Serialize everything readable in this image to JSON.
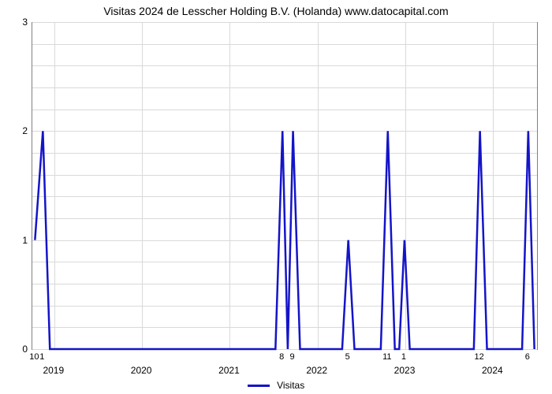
{
  "chart": {
    "type": "line",
    "title": "Visitas 2024 de Lesscher Holding B.V. (Holanda) www.datocapital.com",
    "title_fontsize": 14,
    "background_color": "#ffffff",
    "grid_color": "#d9d9d9",
    "axis_color": "#808080",
    "line_color": "#1414c8",
    "line_width": 2.5,
    "y_axis": {
      "min": 0,
      "max": 3,
      "ticks": [
        0,
        1,
        2,
        3
      ],
      "minor_gridlines_per_major": 4,
      "label_fontsize": 12
    },
    "x_axis": {
      "min": 2018.75,
      "max": 2024.5,
      "major_ticks": [
        2019,
        2020,
        2021,
        2022,
        2023,
        2024
      ],
      "minor_labels": [
        {
          "x": 2018.78,
          "label": "10"
        },
        {
          "x": 2018.87,
          "label": "1"
        },
        {
          "x": 2021.6,
          "label": "8"
        },
        {
          "x": 2021.72,
          "label": "9"
        },
        {
          "x": 2022.35,
          "label": "5"
        },
        {
          "x": 2022.8,
          "label": "11"
        },
        {
          "x": 2022.99,
          "label": "1"
        },
        {
          "x": 2023.85,
          "label": "12"
        },
        {
          "x": 2024.4,
          "label": "6"
        }
      ],
      "label_fontsize": 12
    },
    "series": {
      "name": "Visitas",
      "points": [
        {
          "x": 2018.78,
          "y": 1
        },
        {
          "x": 2018.87,
          "y": 2
        },
        {
          "x": 2018.95,
          "y": 0
        },
        {
          "x": 2021.52,
          "y": 0
        },
        {
          "x": 2021.6,
          "y": 2
        },
        {
          "x": 2021.66,
          "y": 0
        },
        {
          "x": 2021.72,
          "y": 2
        },
        {
          "x": 2021.8,
          "y": 0
        },
        {
          "x": 2022.28,
          "y": 0
        },
        {
          "x": 2022.35,
          "y": 1
        },
        {
          "x": 2022.42,
          "y": 0
        },
        {
          "x": 2022.72,
          "y": 0
        },
        {
          "x": 2022.8,
          "y": 2
        },
        {
          "x": 2022.88,
          "y": 0
        },
        {
          "x": 2022.93,
          "y": 0
        },
        {
          "x": 2022.99,
          "y": 1
        },
        {
          "x": 2023.05,
          "y": 0
        },
        {
          "x": 2023.78,
          "y": 0
        },
        {
          "x": 2023.85,
          "y": 2
        },
        {
          "x": 2023.93,
          "y": 0
        },
        {
          "x": 2024.33,
          "y": 0
        },
        {
          "x": 2024.4,
          "y": 2
        },
        {
          "x": 2024.47,
          "y": 0
        }
      ]
    },
    "legend": {
      "label": "Visitas",
      "fontsize": 12
    }
  }
}
